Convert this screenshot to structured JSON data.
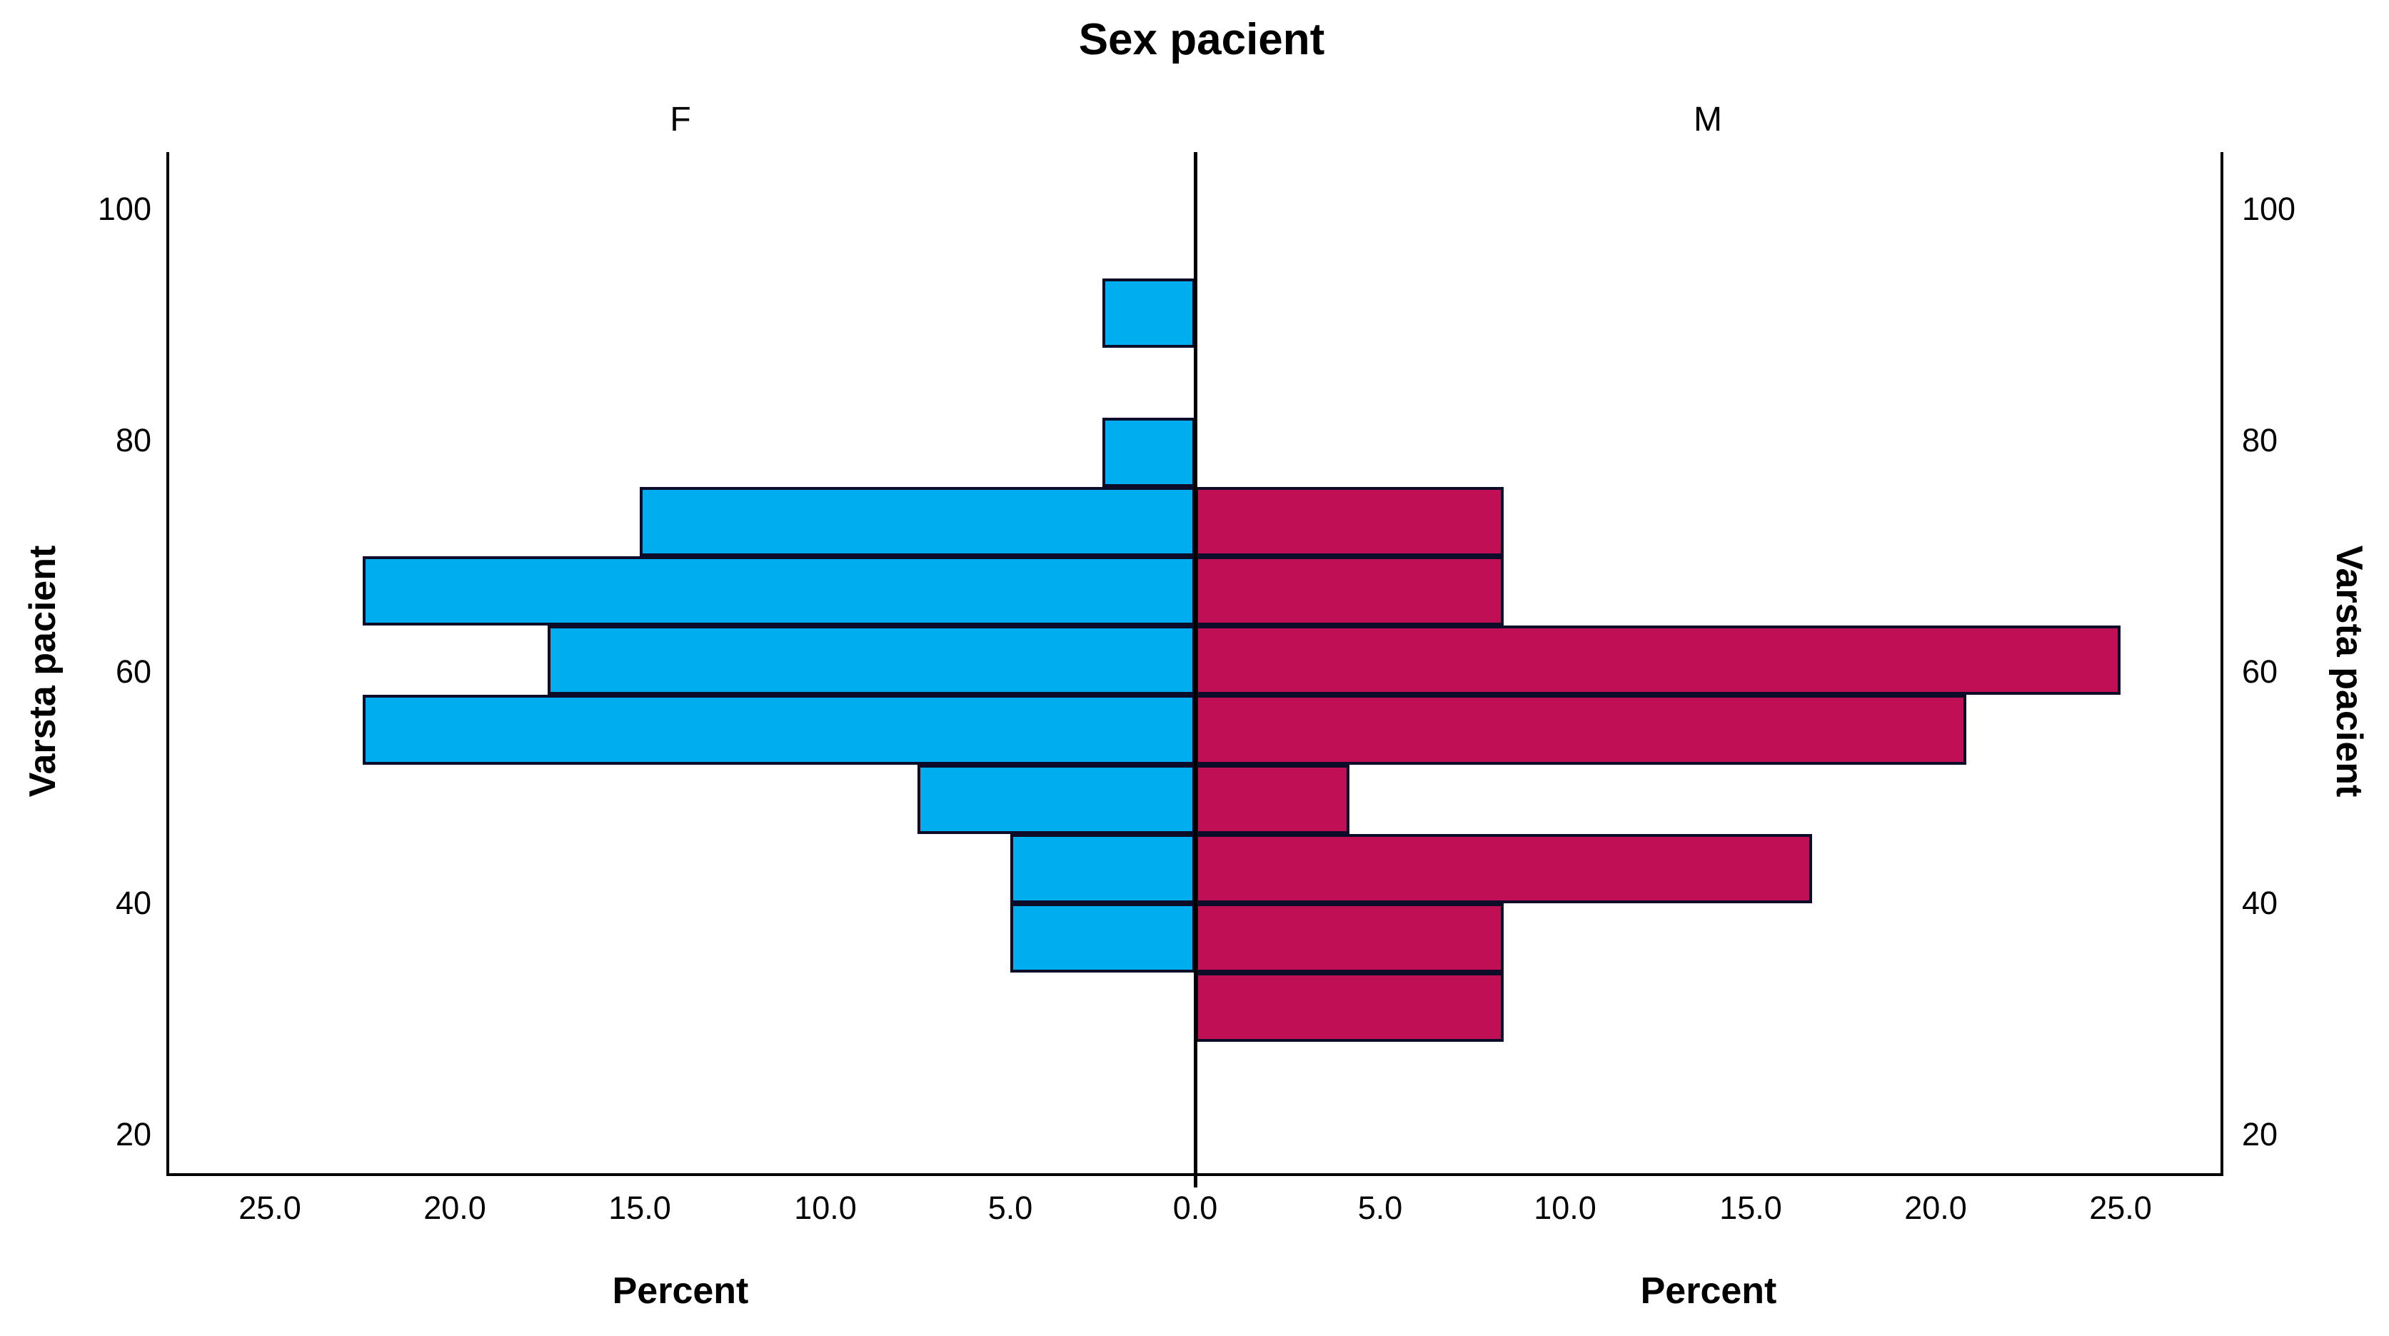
{
  "title": "Sex pacient",
  "panels": {
    "left": "F",
    "right": "M"
  },
  "axes": {
    "y_title_left": "Varsta pacient",
    "y_title_right": "Varsta pacient",
    "x_title_left": "Percent",
    "x_title_right": "Percent",
    "y_ticks": [
      "100",
      "80",
      "60",
      "40",
      "20"
    ],
    "x_ticks_left": [
      "25.0",
      "20.0",
      "15.0",
      "10.0",
      "5.0"
    ],
    "x_tick_center": "0.0",
    "x_ticks_right": [
      "5.0",
      "10.0",
      "15.0",
      "20.0",
      "25.0"
    ]
  },
  "colors": {
    "female_bar": "#00ADEF",
    "male_bar": "#C00F55",
    "bar_border": "#0D0D2A",
    "axis": "#000000"
  },
  "chart_data": {
    "type": "bar",
    "subtype": "population-pyramid",
    "title": "Sex pacient",
    "panel_categories": [
      "F",
      "M"
    ],
    "xlabel": "Percent",
    "ylabel": "Varsta pacient",
    "x_range_each_side": [
      0,
      27.7
    ],
    "x_tick_step": 5,
    "y_range": [
      20,
      105
    ],
    "y_ticks": [
      20,
      40,
      60,
      80,
      100
    ],
    "grid": false,
    "legend": false,
    "bin_width_years": 6,
    "bins": [
      {
        "age_min": 28,
        "age_max": 34,
        "F": 0,
        "M": 8.33
      },
      {
        "age_min": 34,
        "age_max": 40,
        "F": 5.0,
        "M": 8.33
      },
      {
        "age_min": 40,
        "age_max": 46,
        "F": 5.0,
        "M": 16.67
      },
      {
        "age_min": 46,
        "age_max": 52,
        "F": 7.5,
        "M": 4.17
      },
      {
        "age_min": 52,
        "age_max": 58,
        "F": 22.5,
        "M": 20.83
      },
      {
        "age_min": 58,
        "age_max": 64,
        "F": 17.5,
        "M": 25.0
      },
      {
        "age_min": 64,
        "age_max": 70,
        "F": 22.5,
        "M": 8.33
      },
      {
        "age_min": 70,
        "age_max": 76,
        "F": 15.0,
        "M": 8.33
      },
      {
        "age_min": 76,
        "age_max": 82,
        "F": 2.5,
        "M": 0
      },
      {
        "age_min": 82,
        "age_max": 88,
        "F": 0,
        "M": 0
      },
      {
        "age_min": 88,
        "age_max": 94,
        "F": 2.5,
        "M": 0
      }
    ]
  }
}
